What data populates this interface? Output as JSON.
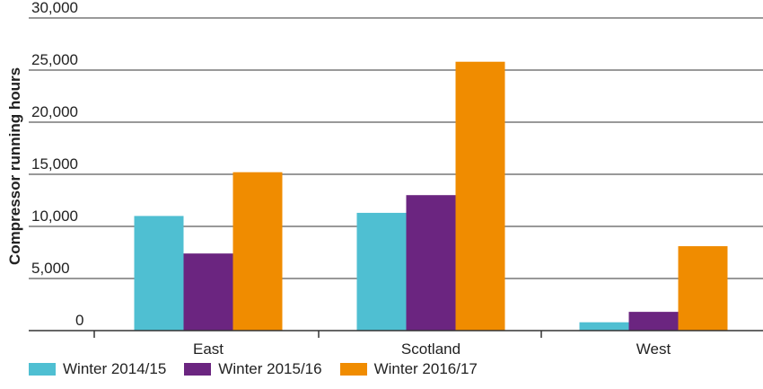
{
  "chart_data": {
    "type": "bar",
    "categories": [
      "East",
      "Scotland",
      "West"
    ],
    "series": [
      {
        "name": "Winter 2014/15",
        "color": "#4fbfd2",
        "values": [
          11000,
          11300,
          800
        ]
      },
      {
        "name": "Winter 2015/16",
        "color": "#6b2580",
        "values": [
          7400,
          13000,
          1800
        ]
      },
      {
        "name": "Winter 2016/17",
        "color": "#f08c00",
        "values": [
          15200,
          25800,
          8100
        ]
      }
    ],
    "ylabel": "Compressor running hours",
    "xlabel": "",
    "ylim": [
      0,
      30000
    ],
    "yticks": [
      0,
      5000,
      10000,
      15000,
      20000,
      25000,
      30000
    ],
    "ytick_labels": [
      "0",
      "5,000",
      "10,000",
      "15,000",
      "20,000",
      "25,000",
      "30,000"
    ],
    "grid": true,
    "legend_position": "bottom-left"
  }
}
